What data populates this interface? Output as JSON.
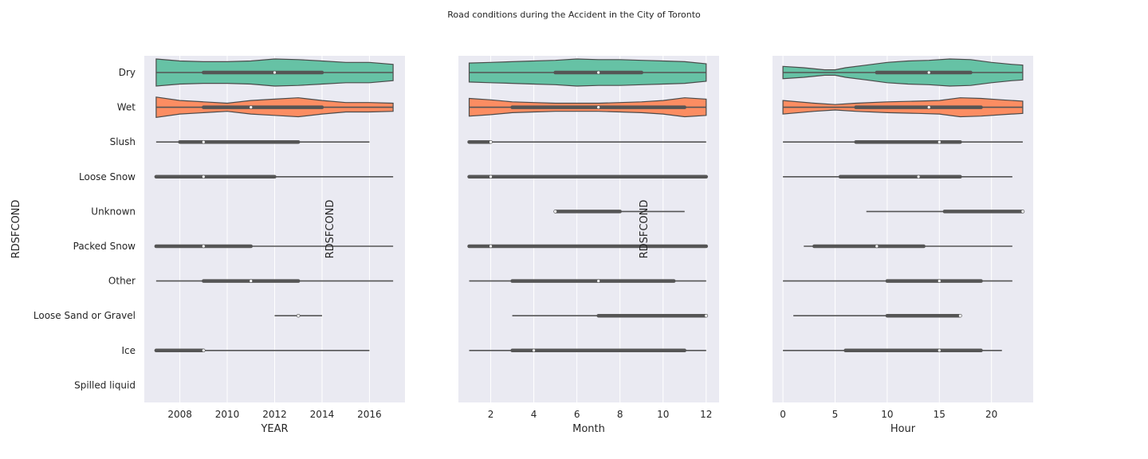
{
  "chart_data": {
    "type": "violin",
    "title": "Road conditions during the Accident in the City of Toronto",
    "categories": [
      "Dry",
      "Wet",
      "Slush",
      "Loose Snow",
      "Unknown",
      "Packed Snow",
      "Other",
      "Loose Sand or Gravel",
      "Ice",
      "Spilled liquid"
    ],
    "ylabel": "RDSFCOND",
    "palette": {
      "Dry": "#66c2a5",
      "Wet": "#fc8d62",
      "box": "#555555",
      "background": "#eaeaf2",
      "grid": "#ffffff"
    },
    "panels": [
      {
        "xlabel": "YEAR",
        "xlim": [
          2006.5,
          2017.5
        ],
        "xticks": [
          2008,
          2010,
          2012,
          2014,
          2016
        ],
        "show_ylabels": true,
        "series": [
          {
            "category": "Dry",
            "min": 2007,
            "q1": 2009,
            "median": 2012,
            "q3": 2014,
            "max": 2017,
            "violin": [
              [
                2007,
                1.0
              ],
              [
                2008,
                0.85
              ],
              [
                2009,
                0.8
              ],
              [
                2010,
                0.8
              ],
              [
                2011,
                0.85
              ],
              [
                2012,
                1.0
              ],
              [
                2013,
                0.95
              ],
              [
                2014,
                0.85
              ],
              [
                2015,
                0.75
              ],
              [
                2016,
                0.75
              ],
              [
                2017,
                0.6
              ]
            ]
          },
          {
            "category": "Wet",
            "min": 2007,
            "q1": 2009,
            "median": 2011,
            "q3": 2014,
            "max": 2017,
            "violin": [
              [
                2007,
                0.75
              ],
              [
                2008,
                0.5
              ],
              [
                2009,
                0.4
              ],
              [
                2010,
                0.3
              ],
              [
                2011,
                0.5
              ],
              [
                2012,
                0.6
              ],
              [
                2013,
                0.7
              ],
              [
                2014,
                0.5
              ],
              [
                2015,
                0.35
              ],
              [
                2016,
                0.35
              ],
              [
                2017,
                0.3
              ]
            ]
          },
          {
            "category": "Slush",
            "min": 2007,
            "q1": 2008,
            "median": 2009,
            "q3": 2013,
            "max": 2016
          },
          {
            "category": "Loose Snow",
            "min": 2007,
            "q1": 2007,
            "median": 2009,
            "q3": 2012,
            "max": 2017
          },
          {
            "category": "Packed Snow",
            "min": 2007,
            "q1": 2007,
            "median": 2009,
            "q3": 2011,
            "max": 2017
          },
          {
            "category": "Other",
            "min": 2007,
            "q1": 2009,
            "median": 2011,
            "q3": 2013,
            "max": 2017
          },
          {
            "category": "Loose Sand or Gravel",
            "min": 2012,
            "q1": 2013,
            "median": 2013,
            "q3": 2013,
            "max": 2014
          },
          {
            "category": "Ice",
            "min": 2007,
            "q1": 2007,
            "median": 2009,
            "q3": 2009,
            "max": 2016
          }
        ]
      },
      {
        "xlabel": "Month",
        "xlim": [
          0.5,
          12.6
        ],
        "xticks": [
          2,
          4,
          6,
          8,
          10,
          12
        ],
        "show_ylabels": false,
        "series": [
          {
            "category": "Dry",
            "min": 1,
            "q1": 5,
            "median": 7,
            "q3": 9,
            "max": 12,
            "violin": [
              [
                1,
                0.7
              ],
              [
                2,
                0.75
              ],
              [
                3,
                0.8
              ],
              [
                4,
                0.85
              ],
              [
                5,
                0.9
              ],
              [
                6,
                1.0
              ],
              [
                7,
                0.95
              ],
              [
                8,
                0.95
              ],
              [
                9,
                0.9
              ],
              [
                10,
                0.85
              ],
              [
                11,
                0.8
              ],
              [
                12,
                0.65
              ]
            ]
          },
          {
            "category": "Wet",
            "min": 1,
            "q1": 3,
            "median": 7,
            "q3": 11,
            "max": 12,
            "violin": [
              [
                1,
                0.65
              ],
              [
                2,
                0.55
              ],
              [
                3,
                0.4
              ],
              [
                4,
                0.35
              ],
              [
                5,
                0.3
              ],
              [
                6,
                0.3
              ],
              [
                7,
                0.3
              ],
              [
                8,
                0.35
              ],
              [
                9,
                0.4
              ],
              [
                10,
                0.5
              ],
              [
                11,
                0.7
              ],
              [
                12,
                0.6
              ]
            ]
          },
          {
            "category": "Slush",
            "min": 1,
            "q1": 1,
            "median": 2,
            "q3": 2,
            "max": 12
          },
          {
            "category": "Loose Snow",
            "min": 1,
            "q1": 1,
            "median": 2,
            "q3": 12,
            "max": 12
          },
          {
            "category": "Unknown",
            "min": 5,
            "q1": 5,
            "median": 5,
            "q3": 8,
            "max": 11
          },
          {
            "category": "Packed Snow",
            "min": 1,
            "q1": 1,
            "median": 2,
            "q3": 12,
            "max": 12
          },
          {
            "category": "Other",
            "min": 1,
            "q1": 3,
            "median": 7,
            "q3": 10.5,
            "max": 12
          },
          {
            "category": "Loose Sand or Gravel",
            "min": 3,
            "q1": 7,
            "median": 12,
            "q3": 12,
            "max": 12
          },
          {
            "category": "Ice",
            "min": 1,
            "q1": 3,
            "median": 4,
            "q3": 11,
            "max": 12
          }
        ]
      },
      {
        "xlabel": "Hour",
        "xlim": [
          -1.0,
          24.0
        ],
        "xticks": [
          0,
          5,
          10,
          15,
          20
        ],
        "show_ylabels": false,
        "series": [
          {
            "category": "Dry",
            "min": 0,
            "q1": 9,
            "median": 14,
            "q3": 18,
            "max": 23,
            "violin": [
              [
                0,
                0.45
              ],
              [
                2,
                0.35
              ],
              [
                4,
                0.2
              ],
              [
                5,
                0.2
              ],
              [
                6,
                0.35
              ],
              [
                8,
                0.55
              ],
              [
                10,
                0.75
              ],
              [
                12,
                0.85
              ],
              [
                14,
                0.9
              ],
              [
                16,
                1.0
              ],
              [
                18,
                0.95
              ],
              [
                20,
                0.75
              ],
              [
                22,
                0.6
              ],
              [
                23,
                0.55
              ]
            ]
          },
          {
            "category": "Wet",
            "min": 0,
            "q1": 7,
            "median": 14,
            "q3": 19,
            "max": 23,
            "violin": [
              [
                0,
                0.5
              ],
              [
                3,
                0.3
              ],
              [
                5,
                0.2
              ],
              [
                7,
                0.3
              ],
              [
                10,
                0.4
              ],
              [
                13,
                0.45
              ],
              [
                15,
                0.5
              ],
              [
                17,
                0.7
              ],
              [
                19,
                0.65
              ],
              [
                21,
                0.55
              ],
              [
                23,
                0.45
              ]
            ]
          },
          {
            "category": "Slush",
            "min": 0,
            "q1": 7,
            "median": 15,
            "q3": 17,
            "max": 23
          },
          {
            "category": "Loose Snow",
            "min": 0,
            "q1": 5.5,
            "median": 13,
            "q3": 17,
            "max": 22
          },
          {
            "category": "Unknown",
            "min": 8,
            "q1": 15.5,
            "median": 23,
            "q3": 23,
            "max": 23
          },
          {
            "category": "Packed Snow",
            "min": 2,
            "q1": 3,
            "median": 9,
            "q3": 13.5,
            "max": 22
          },
          {
            "category": "Other",
            "min": 0,
            "q1": 10,
            "median": 15,
            "q3": 19,
            "max": 22
          },
          {
            "category": "Loose Sand or Gravel",
            "min": 1,
            "q1": 10,
            "median": 17,
            "q3": 17,
            "max": 17
          },
          {
            "category": "Ice",
            "min": 0,
            "q1": 6,
            "median": 15,
            "q3": 19,
            "max": 21
          }
        ]
      }
    ]
  }
}
